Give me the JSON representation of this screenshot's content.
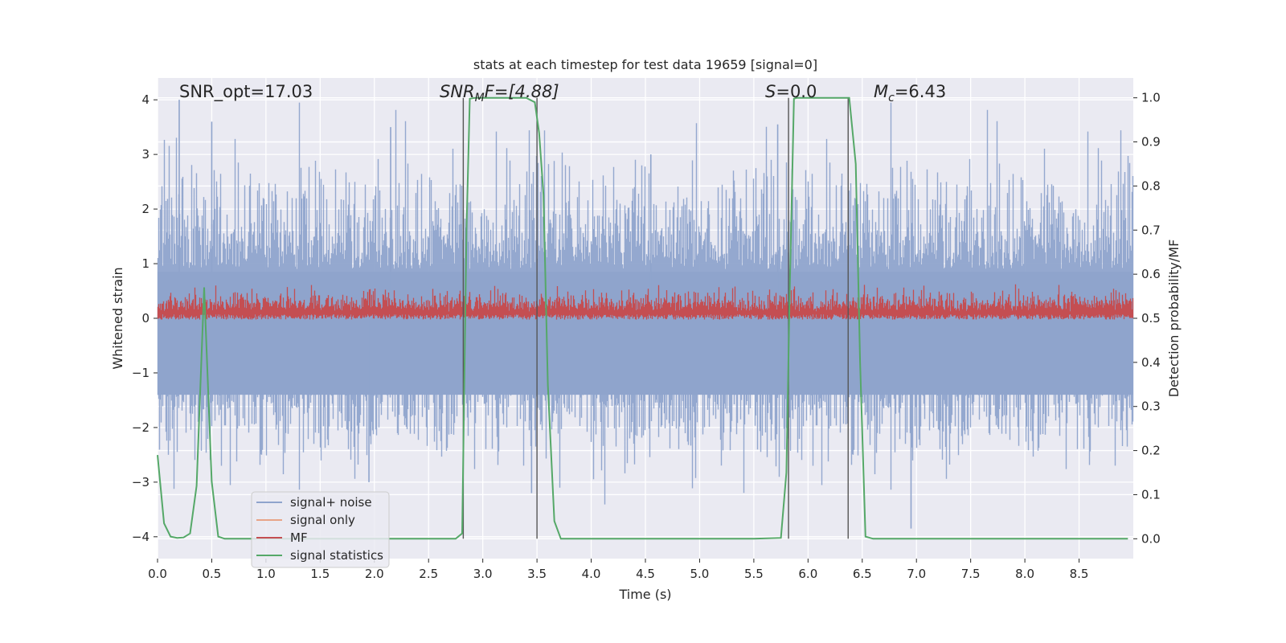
{
  "chart_data": {
    "type": "line",
    "title": "stats at each timestep for test data 19659 [signal=0]",
    "xlabel": "Time (s)",
    "ylabel": "Whitened strain",
    "ylabel_right": "Detection probability/MF",
    "xlim": [
      0,
      9.0
    ],
    "ylim": [
      -4.4,
      4.4
    ],
    "ylim_right": [
      -0.045,
      1.045
    ],
    "xticks": [
      "0.0",
      "0.5",
      "1.0",
      "1.5",
      "2.0",
      "2.5",
      "3.0",
      "3.5",
      "4.0",
      "4.5",
      "5.0",
      "5.5",
      "6.0",
      "6.5",
      "7.0",
      "7.5",
      "8.0",
      "8.5"
    ],
    "yticks": [
      "4",
      "3",
      "2",
      "1",
      "0",
      "−1",
      "−2",
      "−3",
      "−4"
    ],
    "yticks_right": [
      "1.0",
      "0.9",
      "0.8",
      "0.7",
      "0.6",
      "0.5",
      "0.4",
      "0.3",
      "0.2",
      "0.1",
      "0.0"
    ],
    "grid": true,
    "annotations": {
      "snr_opt": "SNR_opt=17.03",
      "snr_mf_base": "SNR",
      "snr_mf_sub": "M",
      "snr_mf_rest": "F=[4.88]",
      "s_base": "S",
      "s_rest": "=0.0",
      "mc_base": "M",
      "mc_sub": "c",
      "mc_rest": "=6.43"
    },
    "vertical_lines_s": [
      2.82,
      3.5,
      5.82,
      6.37
    ],
    "series": [
      {
        "name": "signal+ noise",
        "color": "#8fa4cc",
        "description": "whitened noisy strain, roughly within -2.5 to 3 with peaks near 4 and -4",
        "noise_seed": 19659
      },
      {
        "name": "signal only",
        "color": "#e8a487",
        "values": []
      },
      {
        "name": "MF",
        "color": "#c44e52",
        "axis": "right",
        "description": "matched-filter output fluctuating between 0.5 and 0.6, peak ~0.6"
      },
      {
        "name": "signal statistics",
        "color": "#55a868",
        "axis": "right",
        "x": [
          0.0,
          0.06,
          0.12,
          0.18,
          0.24,
          0.3,
          0.36,
          0.43,
          0.5,
          0.56,
          0.62,
          0.7,
          1.0,
          2.0,
          2.75,
          2.81,
          2.85,
          2.88,
          2.93,
          3.2,
          3.4,
          3.48,
          3.52,
          3.56,
          3.6,
          3.66,
          3.72,
          4.5,
          5.5,
          5.75,
          5.8,
          5.83,
          5.87,
          5.9,
          6.2,
          6.38,
          6.44,
          6.48,
          6.53,
          6.6,
          7.5,
          8.5,
          8.95
        ],
        "values": [
          0.19,
          0.035,
          0.005,
          0.002,
          0.003,
          0.012,
          0.12,
          0.57,
          0.13,
          0.005,
          0.0,
          0.0,
          0.0,
          0.0,
          0.0,
          0.012,
          0.7,
          0.998,
          1.0,
          1.0,
          1.0,
          0.99,
          0.92,
          0.78,
          0.35,
          0.04,
          0.0,
          0.0,
          0.0,
          0.002,
          0.15,
          0.55,
          0.998,
          1.0,
          1.0,
          1.0,
          0.85,
          0.4,
          0.005,
          0.0,
          0.0,
          0.0,
          0.0
        ]
      }
    ],
    "legend": {
      "placement": "lower-left",
      "entries": [
        "signal+ noise",
        "signal only",
        "MF",
        "signal statistics"
      ]
    }
  }
}
